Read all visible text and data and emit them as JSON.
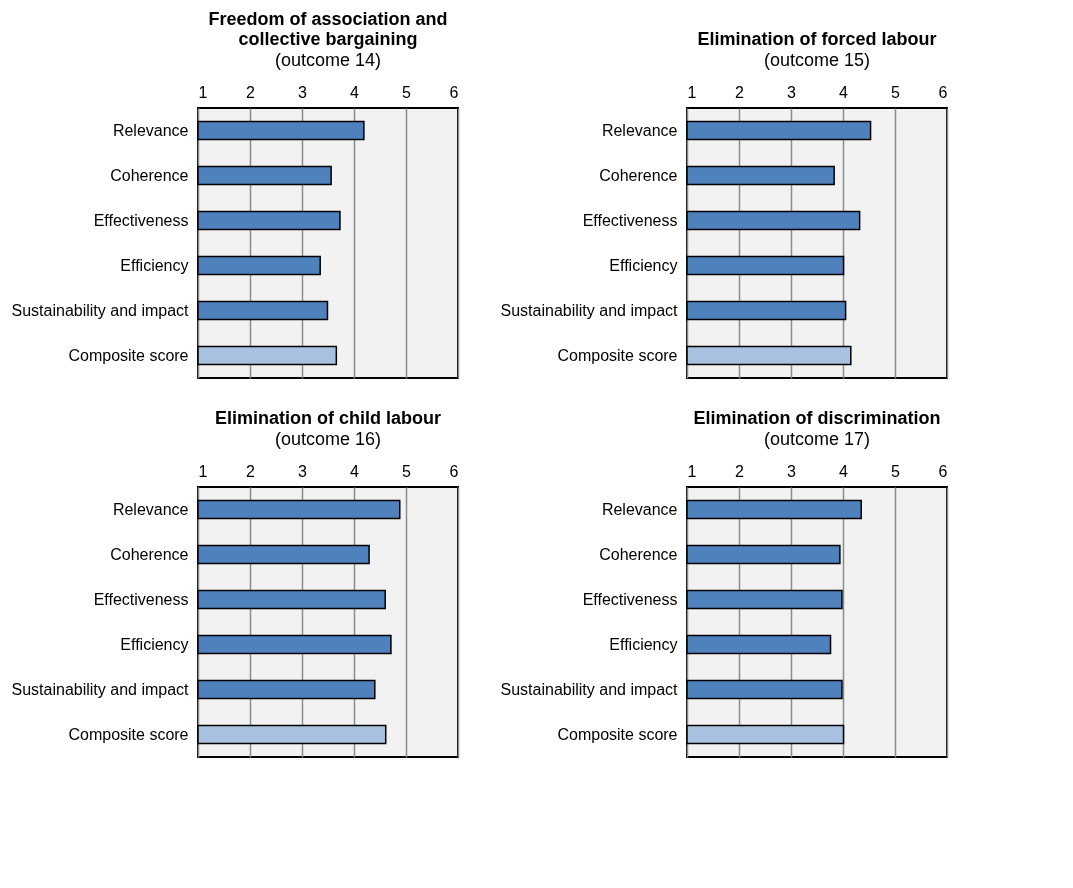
{
  "chart_data": [
    {
      "type": "bar",
      "orientation": "horizontal",
      "title": "Freedom of association and collective bargaining",
      "subtitle": "(outcome 14)",
      "categories": [
        "Relevance",
        "Coherence",
        "Effectiveness",
        "Efficiency",
        "Sustainability and impact",
        "Composite score"
      ],
      "values": [
        4.19,
        3.56,
        3.73,
        3.35,
        3.49,
        3.66
      ],
      "colors": [
        "#4f81bd",
        "#4f81bd",
        "#4f81bd",
        "#4f81bd",
        "#4f81bd",
        "#a9c1e0"
      ],
      "xlim": [
        1,
        6
      ],
      "xticks": [
        1,
        2,
        3,
        4,
        5,
        6
      ],
      "grid": "x"
    },
    {
      "type": "bar",
      "orientation": "horizontal",
      "title": "Elimination of forced labour",
      "subtitle": "(outcome 15)",
      "categories": [
        "Relevance",
        "Coherence",
        "Effectiveness",
        "Efficiency",
        "Sustainability and impact",
        "Composite score"
      ],
      "values": [
        4.53,
        3.83,
        4.32,
        4.01,
        4.05,
        4.15
      ],
      "colors": [
        "#4f81bd",
        "#4f81bd",
        "#4f81bd",
        "#4f81bd",
        "#4f81bd",
        "#a9c1e0"
      ],
      "xlim": [
        1,
        6
      ],
      "xticks": [
        1,
        2,
        3,
        4,
        5,
        6
      ],
      "grid": "x"
    },
    {
      "type": "bar",
      "orientation": "horizontal",
      "title": "Elimination of child labour",
      "subtitle": "(outcome 16)",
      "categories": [
        "Relevance",
        "Coherence",
        "Effectiveness",
        "Efficiency",
        "Sustainability and impact",
        "Composite score"
      ],
      "values": [
        4.88,
        4.29,
        4.6,
        4.71,
        4.4,
        4.61
      ],
      "colors": [
        "#4f81bd",
        "#4f81bd",
        "#4f81bd",
        "#4f81bd",
        "#4f81bd",
        "#a9c1e0"
      ],
      "xlim": [
        1,
        6
      ],
      "xticks": [
        1,
        2,
        3,
        4,
        5,
        6
      ],
      "grid": "x"
    },
    {
      "type": "bar",
      "orientation": "horizontal",
      "title": "Elimination of discrimination",
      "subtitle": "(outcome 17)",
      "categories": [
        "Relevance",
        "Coherence",
        "Effectiveness",
        "Efficiency",
        "Sustainability and impact",
        "Composite score"
      ],
      "values": [
        4.35,
        3.94,
        3.98,
        3.76,
        3.98,
        4.01
      ],
      "colors": [
        "#4f81bd",
        "#4f81bd",
        "#4f81bd",
        "#4f81bd",
        "#4f81bd",
        "#a9c1e0"
      ],
      "xlim": [
        1,
        6
      ],
      "xticks": [
        1,
        2,
        3,
        4,
        5,
        6
      ],
      "grid": "x"
    }
  ]
}
